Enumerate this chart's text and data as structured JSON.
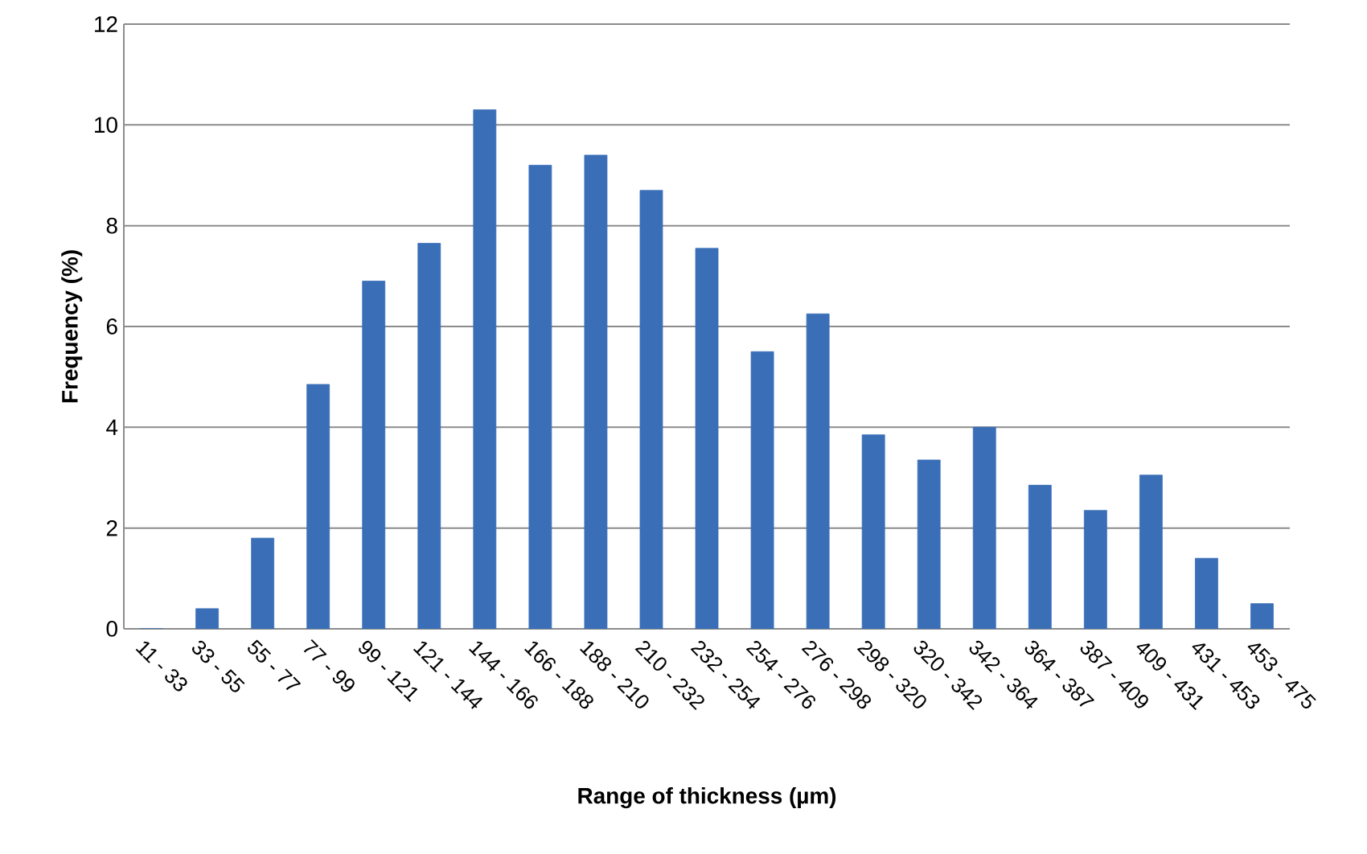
{
  "chart_data": {
    "type": "bar",
    "xlabel": "Range of thickness (µm)",
    "ylabel": "Frequency (%)",
    "categories": [
      "11 - 33",
      "33 - 55",
      "55 - 77",
      "77 - 99",
      "99 - 121",
      "121 - 144",
      "144 - 166",
      "166 - 188",
      "188 - 210",
      "210 - 232",
      "232 - 254",
      "254 - 276",
      "276 - 298",
      "298 - 320",
      "320 - 342",
      "342 - 364",
      "364 - 387",
      "387 - 409",
      "409 - 431",
      "431 - 453",
      "453 - 475"
    ],
    "values": [
      0,
      0.4,
      1.8,
      4.85,
      6.9,
      7.65,
      10.3,
      9.2,
      9.4,
      8.7,
      7.55,
      5.5,
      6.25,
      3.85,
      3.35,
      4.0,
      2.85,
      2.35,
      3.05,
      1.4,
      0.5
    ],
    "color": "#3a6fb8",
    "ylim": [
      0,
      12
    ],
    "yticks": [
      0,
      2,
      4,
      6,
      8,
      10,
      12
    ],
    "grid": "y"
  }
}
